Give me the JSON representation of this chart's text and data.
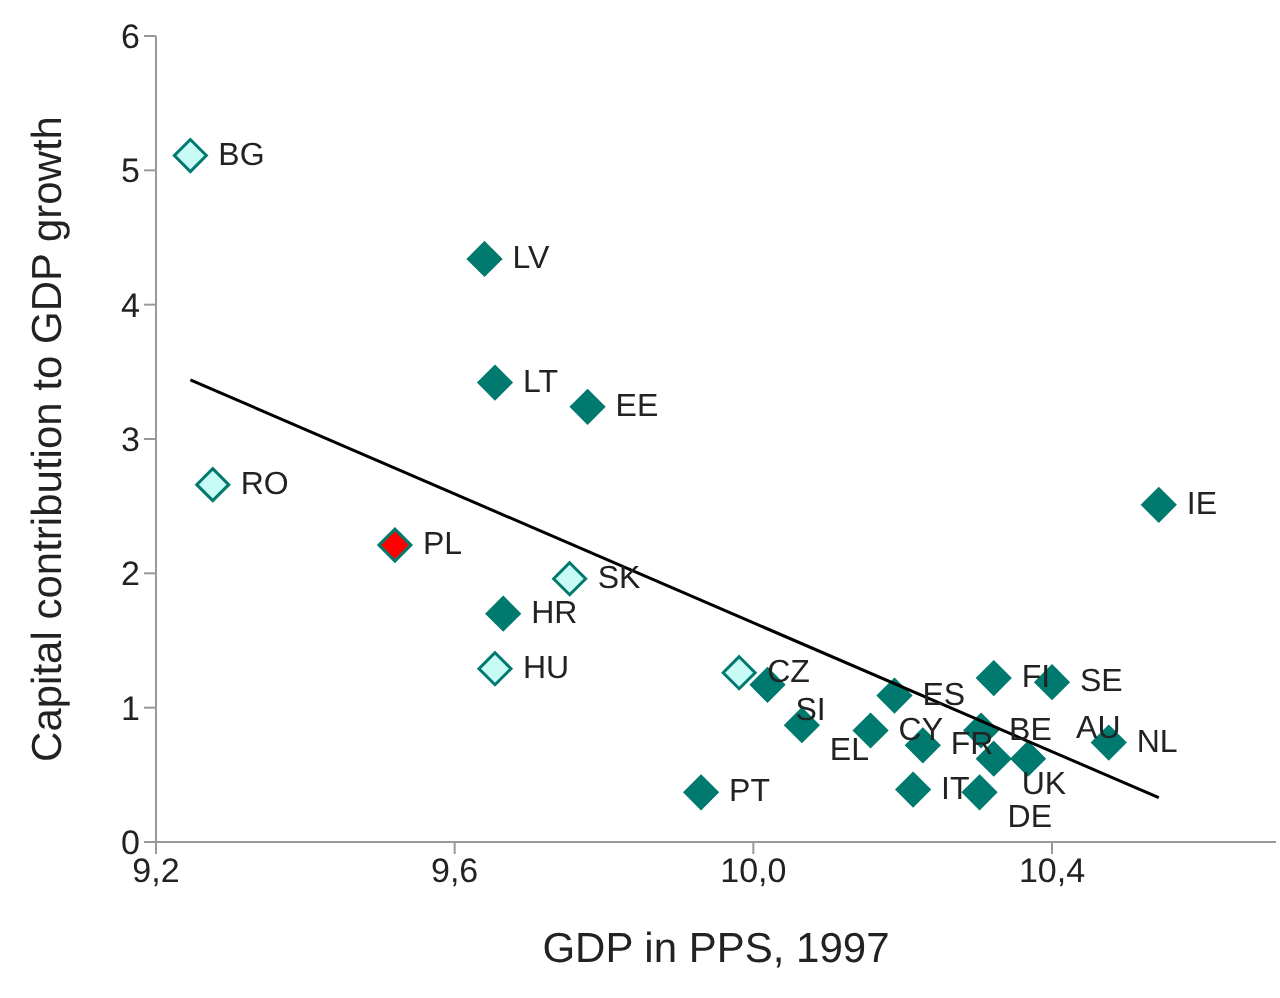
{
  "chart_data": {
    "type": "scatter",
    "xlabel": "GDP in PPS, 1997",
    "ylabel": "Capital contribution to GDP growth",
    "xlim": [
      9.2,
      10.7
    ],
    "xticks": [
      {
        "value": 9.2,
        "label": "9,2"
      },
      {
        "value": 9.6,
        "label": "9,6"
      },
      {
        "value": 10.0,
        "label": "10,0"
      },
      {
        "value": 10.4,
        "label": "10,4"
      }
    ],
    "ylim": [
      0,
      6
    ],
    "yticks": [
      0,
      1,
      2,
      3,
      4,
      5,
      6
    ],
    "grid": false,
    "marker": "diamond",
    "series": [
      {
        "color": "#007a6e",
        "x": [
          9.64,
          9.654,
          9.778,
          9.665,
          10.543,
          10.019,
          10.189,
          10.065,
          10.157,
          10.227,
          10.305,
          10.322,
          10.368,
          10.476,
          10.322,
          10.4,
          9.93,
          10.214,
          10.303
        ],
        "values": [
          4.34,
          3.42,
          3.24,
          1.7,
          2.51,
          1.17,
          1.09,
          0.87,
          0.83,
          0.72,
          0.83,
          0.62,
          0.62,
          0.74,
          1.22,
          1.19,
          0.37,
          0.39,
          0.37
        ]
      },
      {
        "color": "#c8fbf5",
        "x": [
          9.246,
          9.276,
          9.754,
          9.654,
          9.981
        ],
        "values": [
          5.11,
          2.66,
          1.96,
          1.29,
          1.26
        ]
      },
      {
        "color": "#ff0000",
        "x": [
          9.52
        ],
        "values": [
          2.21
        ]
      },
      {
        "type": "line",
        "color": "#000000",
        "marker": "none",
        "x": [
          9.246,
          10.543
        ],
        "values": [
          3.44,
          0.33
        ]
      }
    ],
    "annotations": [
      {
        "text": "BG",
        "x": 9.246,
        "y": 5.11
      },
      {
        "text": "LV",
        "x": 9.64,
        "y": 4.34
      },
      {
        "text": "LT",
        "x": 9.654,
        "y": 3.42
      },
      {
        "text": "EE",
        "x": 9.778,
        "y": 3.24
      },
      {
        "text": "RO",
        "x": 9.276,
        "y": 2.66
      },
      {
        "text": "PL",
        "x": 9.52,
        "y": 2.21
      },
      {
        "text": "SK",
        "x": 9.754,
        "y": 1.96
      },
      {
        "text": "HR",
        "x": 9.665,
        "y": 1.7
      },
      {
        "text": "HU",
        "x": 9.654,
        "y": 1.29
      },
      {
        "text": "IE",
        "x": 10.543,
        "y": 2.51
      },
      {
        "text": "CZ",
        "x": 9.981,
        "y": 1.26
      },
      {
        "text": "SI",
        "x": 10.019,
        "y": 1.17
      },
      {
        "text": "ES",
        "x": 10.189,
        "y": 1.09
      },
      {
        "text": "EL",
        "x": 10.065,
        "y": 0.87
      },
      {
        "text": "CY",
        "x": 10.157,
        "y": 0.83
      },
      {
        "text": "FR",
        "x": 10.227,
        "y": 0.72
      },
      {
        "text": "BE",
        "x": 10.305,
        "y": 0.83
      },
      {
        "text": "UK",
        "x": 10.322,
        "y": 0.62
      },
      {
        "text": "AU",
        "x": 10.368,
        "y": 0.62
      },
      {
        "text": "NL",
        "x": 10.476,
        "y": 0.74
      },
      {
        "text": "FI",
        "x": 10.322,
        "y": 1.22
      },
      {
        "text": "SE",
        "x": 10.4,
        "y": 1.19
      },
      {
        "text": "PT",
        "x": 9.93,
        "y": 0.37
      },
      {
        "text": "IT",
        "x": 10.214,
        "y": 0.39
      },
      {
        "text": "DE",
        "x": 10.303,
        "y": 0.37
      }
    ]
  }
}
